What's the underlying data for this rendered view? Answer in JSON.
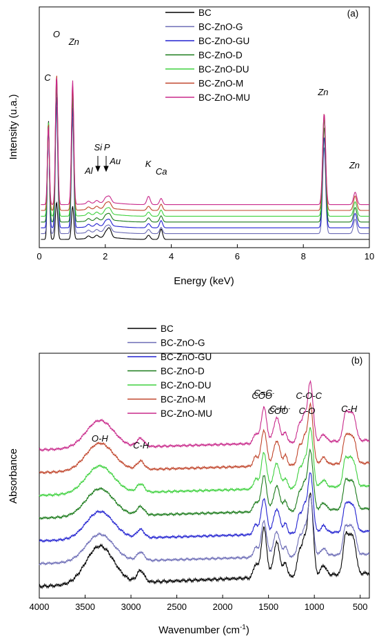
{
  "chart_data": [
    {
      "panel": "(a)",
      "type": "line",
      "xlabel": "Energy (keV)",
      "ylabel": "Intensity (u.a.)",
      "xlim": [
        0,
        10
      ],
      "x_ticks": [
        "0",
        "2",
        "4",
        "6",
        "8",
        "10"
      ],
      "legend_placement": "top-right",
      "peaks": [
        {
          "label": "C",
          "x": 0.277
        },
        {
          "label": "O",
          "x": 0.525
        },
        {
          "label": "Zn",
          "x": 1.01
        },
        {
          "label": "Al",
          "x": 1.49
        },
        {
          "label": "Si",
          "x": 1.74
        },
        {
          "label": "P",
          "x": 2.01
        },
        {
          "label": "Au",
          "x": 2.12
        },
        {
          "label": "K",
          "x": 3.31
        },
        {
          "label": "Ca",
          "x": 3.69
        },
        {
          "label": "Zn",
          "x": 8.63
        },
        {
          "label": "Zn",
          "x": 9.57
        }
      ],
      "annotations": [
        {
          "text": "C",
          "x": 0.25
        },
        {
          "text": "O",
          "x": 0.52
        },
        {
          "text": "Zn",
          "x": 1.05
        },
        {
          "text": "Al",
          "x": 1.5
        },
        {
          "text": "Si",
          "x": 1.78
        },
        {
          "text": "P",
          "x": 2.05
        },
        {
          "text": "Au",
          "x": 2.3
        },
        {
          "text": "K",
          "x": 3.3
        },
        {
          "text": "Ca",
          "x": 3.7
        },
        {
          "text": "Zn",
          "x": 8.6
        },
        {
          "text": "Zn",
          "x": 9.55
        }
      ],
      "series": [
        {
          "name": "BC",
          "color": "#000000",
          "offset": 0,
          "peak_heights": [
            0.58,
            0.18,
            0.16,
            0.012,
            0.012,
            0.02,
            0.045,
            0.02,
            0.05,
            0.0,
            0.0
          ]
        },
        {
          "name": "BC-ZnO-G",
          "color": "#6a6ab5",
          "offset": 0.028,
          "peak_heights": [
            0.52,
            0.62,
            0.56,
            0.012,
            0.012,
            0.02,
            0.03,
            0.02,
            0.03,
            0.42,
            0.07
          ]
        },
        {
          "name": "BC-ZnO-GU",
          "color": "#2020d0",
          "offset": 0.056,
          "peak_heights": [
            0.5,
            0.64,
            0.58,
            0.012,
            0.012,
            0.02,
            0.03,
            0.02,
            0.035,
            0.44,
            0.07
          ]
        },
        {
          "name": "BC-ZnO-D",
          "color": "#1a7a1a",
          "offset": 0.084,
          "peak_heights": [
            0.48,
            0.66,
            0.6,
            0.012,
            0.012,
            0.02,
            0.03,
            0.02,
            0.03,
            0.46,
            0.07
          ]
        },
        {
          "name": "BC-ZnO-DU",
          "color": "#3ed13e",
          "offset": 0.112,
          "peak_heights": [
            0.46,
            0.68,
            0.62,
            0.012,
            0.012,
            0.02,
            0.03,
            0.02,
            0.03,
            0.47,
            0.07
          ]
        },
        {
          "name": "BC-ZnO-M",
          "color": "#c0442a",
          "offset": 0.14,
          "peak_heights": [
            0.42,
            0.66,
            0.6,
            0.012,
            0.012,
            0.02,
            0.03,
            0.02,
            0.03,
            0.47,
            0.07
          ]
        },
        {
          "name": "BC-ZnO-MU",
          "color": "#c8288a",
          "offset": 0.168,
          "peak_heights": [
            0.38,
            0.62,
            0.6,
            0.012,
            0.012,
            0.02,
            0.03,
            0.04,
            0.03,
            0.44,
            0.06
          ]
        }
      ]
    },
    {
      "panel": "(b)",
      "type": "line",
      "xlabel": "Wavenumber (cm-1)",
      "ylabel": "Absorbance",
      "xlim": [
        4000,
        400
      ],
      "x_reversed": true,
      "x_ticks": [
        "4000",
        "3500",
        "3000",
        "2500",
        "2000",
        "1500",
        "1000",
        "500"
      ],
      "legend_placement": "top-left",
      "bands": [
        {
          "label": "O-H",
          "x": 3340
        },
        {
          "label": "C-H",
          "x": 2895
        },
        {
          "label": "C=C / COO-",
          "x": 1550
        },
        {
          "label": "C-H / COO-",
          "x": 1410
        },
        {
          "label": "C-O-C / C-O",
          "x": 1035
        },
        {
          "label": "C-H",
          "x": 640
        }
      ],
      "annotations": [
        {
          "text": "O-H",
          "x": 3340
        },
        {
          "text": "C-H",
          "x": 2890
        },
        {
          "text": "C=C",
          "x": 1560
        },
        {
          "text": "COO",
          "x": 1560
        },
        {
          "text": "C-H",
          "x": 1400
        },
        {
          "text": "COO",
          "x": 1385
        },
        {
          "text": "C-O-C",
          "x": 1060
        },
        {
          "text": "C-O",
          "x": 1080
        },
        {
          "text": "C-H",
          "x": 620
        }
      ],
      "series": [
        {
          "name": "BC",
          "color": "#000000",
          "offset": 0
        },
        {
          "name": "BC-ZnO-G",
          "color": "#6a6ab5",
          "offset": 1
        },
        {
          "name": "BC-ZnO-GU",
          "color": "#2020d0",
          "offset": 2
        },
        {
          "name": "BC-ZnO-D",
          "color": "#1a7a1a",
          "offset": 3
        },
        {
          "name": "BC-ZnO-DU",
          "color": "#3ed13e",
          "offset": 4
        },
        {
          "name": "BC-ZnO-M",
          "color": "#c0442a",
          "offset": 5
        },
        {
          "name": "BC-ZnO-MU",
          "color": "#c8288a",
          "offset": 6
        }
      ]
    }
  ]
}
